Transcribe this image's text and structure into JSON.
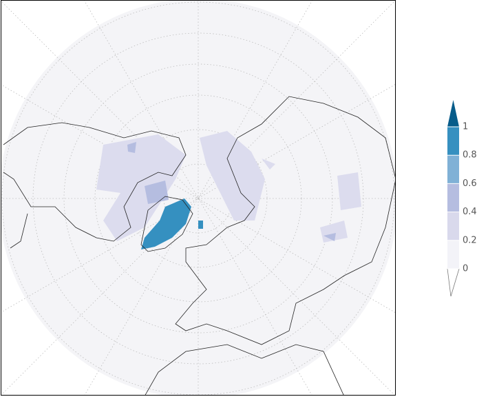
{
  "colorbar": {
    "ticks": [
      0,
      0.2,
      0.4,
      0.6,
      0.8,
      1
    ],
    "colors": [
      "#f3f3f8",
      "#d9d9ec",
      "#b5bde0",
      "#80b1d6",
      "#3690c0",
      "#075c8a"
    ]
  }
}
